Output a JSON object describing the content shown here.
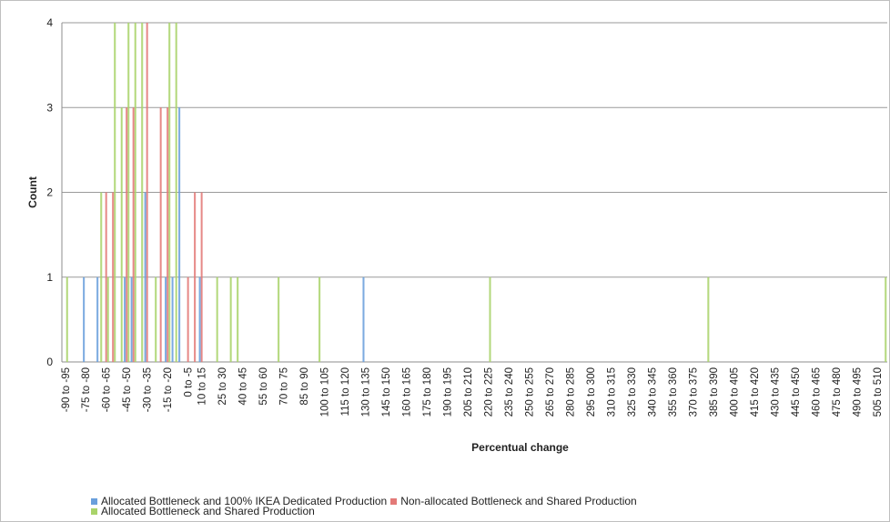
{
  "chart_data": {
    "type": "bar",
    "stacked": false,
    "title": "",
    "xlabel": "Percentual change",
    "ylabel": "Count",
    "ylim": [
      0,
      4
    ],
    "yticks": [
      0,
      1,
      2,
      3,
      4
    ],
    "grid": "horizontal",
    "legend_position": "bottom-left",
    "categories": [
      "-90 to -95",
      "-85 to -90",
      "-80 to -85",
      "-75 to -80",
      "-70 to -75",
      "-65 to -70",
      "-60 to -65",
      "-55 to -60",
      "-50 to -55",
      "-45 to -50",
      "-40 to -45",
      "-35 to -40",
      "-30 to -35",
      "-25 to -30",
      "-20 to -25",
      "-15 to -20",
      "-10 to -15",
      "-5 to -10",
      "0 to -5",
      "5 to 10",
      "10 to 15",
      "15 to 20",
      "20 to 25",
      "25 to 30",
      "30 to 35",
      "35 to 40",
      "40 to 45",
      "45 to 50",
      "50 to 55",
      "55 to 60",
      "60 to 65",
      "65 to 70",
      "70 to 75",
      "75 to 80",
      "80 to 85",
      "85 to 90",
      "90 to 95",
      "95 to 100",
      "100 to 105",
      "105 to 110",
      "110 to 115",
      "115 to 120",
      "120 to 125",
      "125 to 130",
      "130 to 135",
      "135 to 140",
      "140 to 145",
      "145 to 150",
      "150 to 155",
      "155 to 160",
      "160 to 165",
      "165 to 170",
      "170 to 175",
      "175 to 180",
      "180 to 185",
      "185 to 190",
      "190 to 195",
      "195 to 200",
      "200 to 205",
      "205 to 210",
      "210 to 215",
      "215 to 220",
      "220 to 225",
      "225 to 230",
      "230 to 235",
      "235 to 240",
      "240 to 245",
      "245 to 250",
      "250 to 255",
      "255 to 260",
      "260 to 265",
      "265 to 270",
      "270 to 275",
      "275 to 280",
      "280 to 285",
      "285 to 290",
      "290 to 295",
      "295 to 300",
      "300 to 305",
      "305 to 310",
      "310 to 315",
      "315 to 320",
      "320 to 325",
      "325 to 330",
      "330 to 335",
      "335 to 340",
      "340 to 345",
      "345 to 350",
      "350 to 355",
      "355 to 360",
      "360 to 365",
      "365 to 370",
      "370 to 375",
      "375 to 380",
      "380 to 385",
      "385 to 390",
      "390 to 395",
      "395 to 400",
      "400 to 405",
      "405 to 410",
      "410 to 415",
      "415 to 420",
      "420 to 425",
      "425 to 430",
      "430 to 435",
      "435 to 440",
      "440 to 445",
      "445 to 450",
      "450 to 455",
      "455 to 460",
      "460 to 465",
      "465 to 470",
      "470 to 475",
      "475 to 480",
      "480 to 485",
      "485 to 490",
      "490 to 495",
      "495 to 500",
      "500 to 505",
      "505 to 510",
      "510 to 515"
    ],
    "tick_labels_shown": [
      "-90 to -95",
      "-75 to -80",
      "-60 to -65",
      "-45 to -50",
      "-30 to -35",
      "-15 to -20",
      "0 to -5",
      "10 to 15",
      "25 to 30",
      "40 to 45",
      "55 to 60",
      "70 to 75",
      "85 to 90",
      "100 to 105",
      "115 to 120",
      "130 to 135",
      "145 to 150",
      "160 to 165",
      "175 to 180",
      "190 to 195",
      "205 to 210",
      "220 to 225",
      "235 to 240",
      "250 to 255",
      "265 to 270",
      "280 to 285",
      "295 to 300",
      "310 to 315",
      "325 to 330",
      "340 to 345",
      "355 to 360",
      "370 to 375",
      "385 to 390",
      "400 to 405",
      "415 to 420",
      "430 to 435",
      "445 to 450",
      "460 to 465",
      "475 to 480",
      "490 to 495",
      "505 to 510"
    ],
    "series": [
      {
        "name": "Allocated Bottleneck and 100% IKEA Dedicated Production",
        "color": "#6a9fdc",
        "values": [
          0,
          0,
          0,
          1,
          0,
          1,
          0,
          0,
          0,
          1,
          1,
          0,
          2,
          0,
          0,
          1,
          1,
          3,
          0,
          0,
          1,
          0,
          0,
          0,
          0,
          0,
          0,
          0,
          0,
          0,
          0,
          0,
          0,
          0,
          0,
          0,
          0,
          0,
          0,
          0,
          0,
          0,
          0,
          0,
          1,
          0,
          0,
          0,
          0,
          0,
          0,
          0,
          0,
          0,
          0,
          0,
          0,
          0,
          0,
          0,
          0,
          0,
          0,
          0,
          0,
          0,
          0,
          0,
          0,
          0,
          0,
          0,
          0,
          0,
          0,
          0,
          0,
          0,
          0,
          0,
          0,
          0,
          0,
          0,
          0,
          0,
          0,
          0,
          0,
          0,
          0,
          0,
          0,
          0,
          0,
          0,
          0,
          0,
          0,
          0,
          0,
          0,
          0,
          0,
          0,
          0,
          0,
          0,
          0,
          0,
          0,
          0,
          0,
          0,
          0,
          0,
          0,
          0,
          0,
          0,
          0
        ]
      },
      {
        "name": "Non-allocated Bottleneck and Shared Production",
        "color": "#e37a78",
        "values": [
          0,
          0,
          0,
          0,
          0,
          0,
          2,
          2,
          0,
          3,
          3,
          0,
          4,
          0,
          3,
          3,
          0,
          0,
          1,
          2,
          2,
          0,
          0,
          0,
          0,
          0,
          0,
          0,
          0,
          0,
          0,
          0,
          0,
          0,
          0,
          0,
          0,
          0,
          0,
          0,
          0,
          0,
          0,
          0,
          0,
          0,
          0,
          0,
          0,
          0,
          0,
          0,
          0,
          0,
          0,
          0,
          0,
          0,
          0,
          0,
          0,
          0,
          0,
          0,
          0,
          0,
          0,
          0,
          0,
          0,
          0,
          0,
          0,
          0,
          0,
          0,
          0,
          0,
          0,
          0,
          0,
          0,
          0,
          0,
          0,
          0,
          0,
          0,
          0,
          0,
          0,
          0,
          0,
          0,
          0,
          0,
          0,
          0,
          0,
          0,
          0,
          0,
          0,
          0,
          0,
          0,
          0,
          0,
          0,
          0,
          0,
          0,
          0,
          0,
          0,
          0,
          0,
          0,
          0,
          0,
          0
        ]
      },
      {
        "name": "Allocated  Bottleneck and Shared Production",
        "color": "#a9d36a",
        "values": [
          1,
          0,
          0,
          0,
          0,
          2,
          1,
          4,
          3,
          4,
          4,
          4,
          0,
          1,
          0,
          4,
          4,
          0,
          0,
          0,
          0,
          0,
          1,
          0,
          1,
          1,
          0,
          0,
          0,
          0,
          0,
          1,
          0,
          0,
          0,
          0,
          0,
          1,
          0,
          0,
          0,
          0,
          0,
          0,
          0,
          0,
          0,
          0,
          0,
          0,
          0,
          0,
          0,
          0,
          0,
          0,
          0,
          0,
          0,
          0,
          0,
          0,
          1,
          0,
          0,
          0,
          0,
          0,
          0,
          0,
          0,
          0,
          0,
          0,
          0,
          0,
          0,
          0,
          0,
          0,
          0,
          0,
          0,
          0,
          0,
          0,
          0,
          0,
          0,
          0,
          0,
          0,
          0,
          0,
          1,
          0,
          0,
          0,
          0,
          0,
          0,
          0,
          0,
          0,
          0,
          0,
          0,
          0,
          0,
          0,
          0,
          0,
          0,
          0,
          0,
          0,
          0,
          0,
          0,
          0,
          1
        ]
      }
    ]
  }
}
